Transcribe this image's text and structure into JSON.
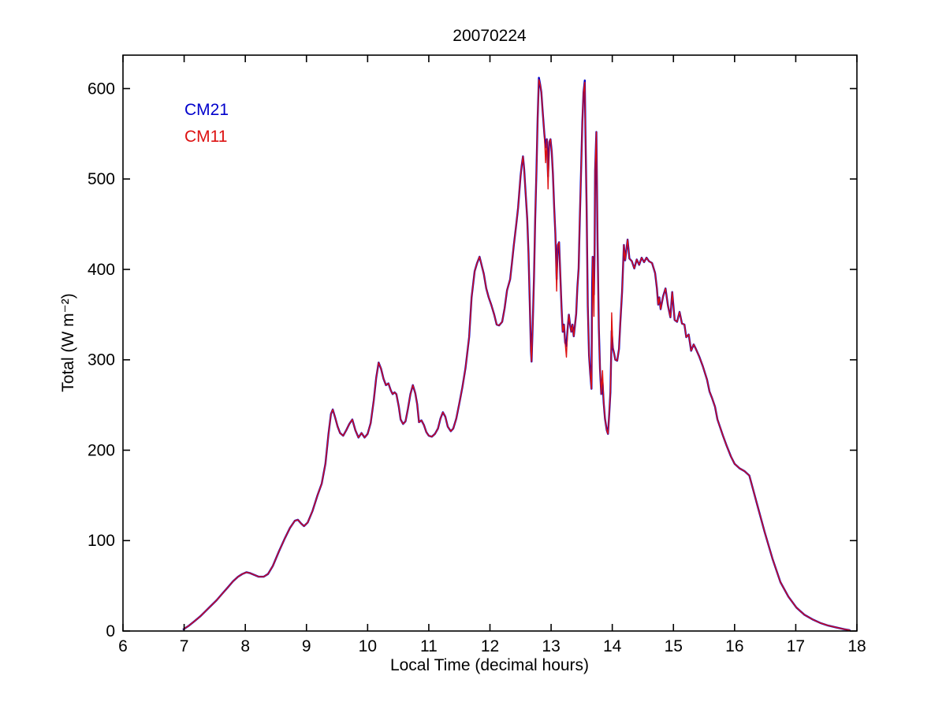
{
  "chart_data": {
    "type": "line",
    "title": "20070224",
    "xlabel": "Local Time (decimal hours)",
    "ylabel": "Total (W m⁻²)",
    "xlim": [
      6,
      18
    ],
    "ylim": [
      0,
      637
    ],
    "xticks": [
      6,
      7,
      8,
      9,
      10,
      11,
      12,
      13,
      14,
      15,
      16,
      17,
      18
    ],
    "yticks": [
      0,
      100,
      200,
      300,
      400,
      500,
      600
    ],
    "grid": false,
    "legend_position": "upper-left-inside",
    "x": [
      6.99,
      7.08,
      7.17,
      7.26,
      7.35,
      7.44,
      7.53,
      7.62,
      7.71,
      7.8,
      7.88,
      7.95,
      8.02,
      8.08,
      8.15,
      8.22,
      8.3,
      8.37,
      8.45,
      8.55,
      8.65,
      8.73,
      8.81,
      8.86,
      8.91,
      8.96,
      9.02,
      9.1,
      9.18,
      9.25,
      9.31,
      9.36,
      9.4,
      9.43,
      9.47,
      9.51,
      9.55,
      9.6,
      9.65,
      9.7,
      9.75,
      9.8,
      9.85,
      9.9,
      9.95,
      10.0,
      10.05,
      10.1,
      10.14,
      10.18,
      10.22,
      10.26,
      10.3,
      10.34,
      10.38,
      10.41,
      10.44,
      10.47,
      10.51,
      10.54,
      10.58,
      10.62,
      10.66,
      10.7,
      10.74,
      10.78,
      10.81,
      10.84,
      10.88,
      10.92,
      10.96,
      11.0,
      11.05,
      11.1,
      11.15,
      11.19,
      11.23,
      11.27,
      11.31,
      11.36,
      11.4,
      11.45,
      11.5,
      11.55,
      11.6,
      11.66,
      11.7,
      11.75,
      11.79,
      11.83,
      11.87,
      11.9,
      11.94,
      11.98,
      12.02,
      12.07,
      12.11,
      12.15,
      12.2,
      12.24,
      12.28,
      12.33,
      12.36,
      12.39,
      12.43,
      12.46,
      12.5,
      12.52,
      12.54,
      12.56,
      12.58,
      12.61,
      12.63,
      12.65,
      12.67,
      12.68,
      12.7,
      12.72,
      12.74,
      12.76,
      12.78,
      12.8,
      12.82,
      12.84,
      12.86,
      12.89,
      12.91,
      12.93,
      12.95,
      12.97,
      12.99,
      13.01,
      13.03,
      13.05,
      13.07,
      13.09,
      13.11,
      13.13,
      13.15,
      13.17,
      13.19,
      13.21,
      13.23,
      13.25,
      13.27,
      13.29,
      13.31,
      13.33,
      13.35,
      13.37,
      13.39,
      13.41,
      13.43,
      13.45,
      13.47,
      13.49,
      13.51,
      13.53,
      13.55,
      13.56,
      13.58,
      13.6,
      13.62,
      13.64,
      13.66,
      13.67,
      13.68,
      13.7,
      13.71,
      13.72,
      13.74,
      13.76,
      13.78,
      13.8,
      13.82,
      13.84,
      13.86,
      13.88,
      13.91,
      13.93,
      13.95,
      13.97,
      13.98,
      13.99,
      14.01,
      14.03,
      14.05,
      14.08,
      14.11,
      14.13,
      14.16,
      14.19,
      14.21,
      14.25,
      14.28,
      14.32,
      14.36,
      14.4,
      14.44,
      14.48,
      14.52,
      14.56,
      14.6,
      14.65,
      14.7,
      14.73,
      14.75,
      14.77,
      14.79,
      14.83,
      14.87,
      14.91,
      14.95,
      14.98,
      15.02,
      15.06,
      15.1,
      15.14,
      15.18,
      15.21,
      15.25,
      15.29,
      15.33,
      15.36,
      15.42,
      15.48,
      15.55,
      15.59,
      15.63,
      15.68,
      15.72,
      15.76,
      15.81,
      15.87,
      15.94,
      16.0,
      16.08,
      16.16,
      16.24,
      16.36,
      16.49,
      16.62,
      16.75,
      16.88,
      17.01,
      17.14,
      17.27,
      17.4,
      17.53,
      17.66,
      17.79,
      17.88
    ],
    "series": [
      {
        "name": "CM21",
        "color": "#0000cc",
        "values": [
          2,
          6,
          11,
          16,
          22,
          28,
          34,
          41,
          48,
          55,
          60,
          63,
          65,
          64,
          62,
          60,
          60,
          63,
          72,
          88,
          103,
          114,
          122,
          123,
          119,
          116,
          120,
          133,
          150,
          163,
          185,
          218,
          240,
          245,
          236,
          226,
          219,
          216,
          222,
          229,
          234,
          222,
          214,
          219,
          214,
          218,
          230,
          255,
          280,
          297,
          290,
          279,
          272,
          274,
          266,
          262,
          264,
          262,
          248,
          234,
          229,
          232,
          246,
          262,
          272,
          263,
          251,
          231,
          233,
          228,
          220,
          216,
          215,
          218,
          224,
          235,
          242,
          237,
          226,
          221,
          224,
          235,
          252,
          270,
          291,
          325,
          369,
          398,
          407,
          414,
          403,
          395,
          379,
          369,
          361,
          350,
          339,
          338,
          342,
          357,
          377,
          389,
          407,
          427,
          450,
          468,
          503,
          515,
          525,
          511,
          488,
          456,
          418,
          367,
          310,
          298,
          340,
          392,
          456,
          509,
          567,
          612,
          605,
          596,
          577,
          550,
          535,
          544,
          503,
          541,
          544,
          530,
          505,
          468,
          439,
          389,
          427,
          430,
          395,
          358,
          331,
          339,
          319,
          315,
          334,
          350,
          339,
          331,
          339,
          326,
          338,
          351,
          380,
          401,
          456,
          509,
          563,
          596,
          609,
          560,
          470,
          360,
          305,
          285,
          268,
          380,
          414,
          372,
          415,
          509,
          552,
          430,
          336,
          290,
          262,
          276,
          252,
          235,
          222,
          218,
          240,
          264,
          297,
          332,
          313,
          307,
          300,
          299,
          312,
          340,
          375,
          427,
          410,
          433,
          412,
          409,
          401,
          411,
          405,
          413,
          408,
          413,
          409,
          407,
          396,
          379,
          361,
          369,
          356,
          370,
          379,
          360,
          347,
          375,
          344,
          342,
          353,
          340,
          339,
          325,
          328,
          310,
          317,
          313,
          304,
          293,
          278,
          265,
          258,
          248,
          234,
          226,
          216,
          205,
          193,
          185,
          180,
          177,
          172,
          142,
          110,
          80,
          54,
          38,
          26,
          18,
          13,
          9,
          6,
          4,
          2,
          1
        ]
      },
      {
        "name": "CM11",
        "color": "#dd1111",
        "values": [
          2,
          6,
          11,
          16,
          22,
          28,
          34,
          41,
          48,
          55,
          60,
          63,
          65,
          64,
          62,
          60,
          60,
          63,
          72,
          88,
          103,
          114,
          122,
          123,
          119,
          116,
          120,
          133,
          150,
          163,
          185,
          218,
          240,
          245,
          236,
          226,
          219,
          216,
          222,
          229,
          234,
          222,
          214,
          219,
          214,
          218,
          230,
          255,
          280,
          297,
          290,
          279,
          272,
          274,
          266,
          262,
          264,
          262,
          248,
          234,
          229,
          232,
          246,
          262,
          272,
          263,
          251,
          231,
          233,
          228,
          220,
          216,
          215,
          218,
          224,
          235,
          242,
          237,
          226,
          221,
          224,
          235,
          252,
          270,
          291,
          325,
          369,
          398,
          407,
          414,
          403,
          395,
          379,
          369,
          361,
          350,
          339,
          338,
          342,
          357,
          377,
          389,
          407,
          427,
          450,
          468,
          503,
          515,
          525,
          511,
          488,
          456,
          418,
          367,
          310,
          298,
          340,
          392,
          456,
          509,
          567,
          610,
          605,
          596,
          577,
          550,
          518,
          544,
          489,
          541,
          544,
          530,
          505,
          468,
          439,
          376,
          427,
          430,
          395,
          358,
          331,
          339,
          319,
          303,
          334,
          350,
          339,
          331,
          339,
          326,
          338,
          351,
          380,
          401,
          456,
          509,
          563,
          596,
          607,
          560,
          470,
          360,
          305,
          285,
          268,
          338,
          414,
          348,
          415,
          509,
          552,
          430,
          336,
          290,
          262,
          288,
          252,
          235,
          222,
          218,
          240,
          264,
          297,
          352,
          313,
          307,
          300,
          299,
          312,
          340,
          375,
          427,
          410,
          433,
          412,
          409,
          401,
          411,
          405,
          413,
          408,
          413,
          409,
          407,
          396,
          379,
          361,
          369,
          356,
          370,
          379,
          360,
          347,
          375,
          344,
          342,
          353,
          340,
          339,
          325,
          328,
          310,
          317,
          313,
          304,
          293,
          278,
          265,
          258,
          248,
          234,
          226,
          216,
          205,
          193,
          185,
          180,
          177,
          172,
          142,
          110,
          80,
          54,
          38,
          26,
          18,
          13,
          9,
          6,
          4,
          2,
          1
        ]
      }
    ]
  }
}
